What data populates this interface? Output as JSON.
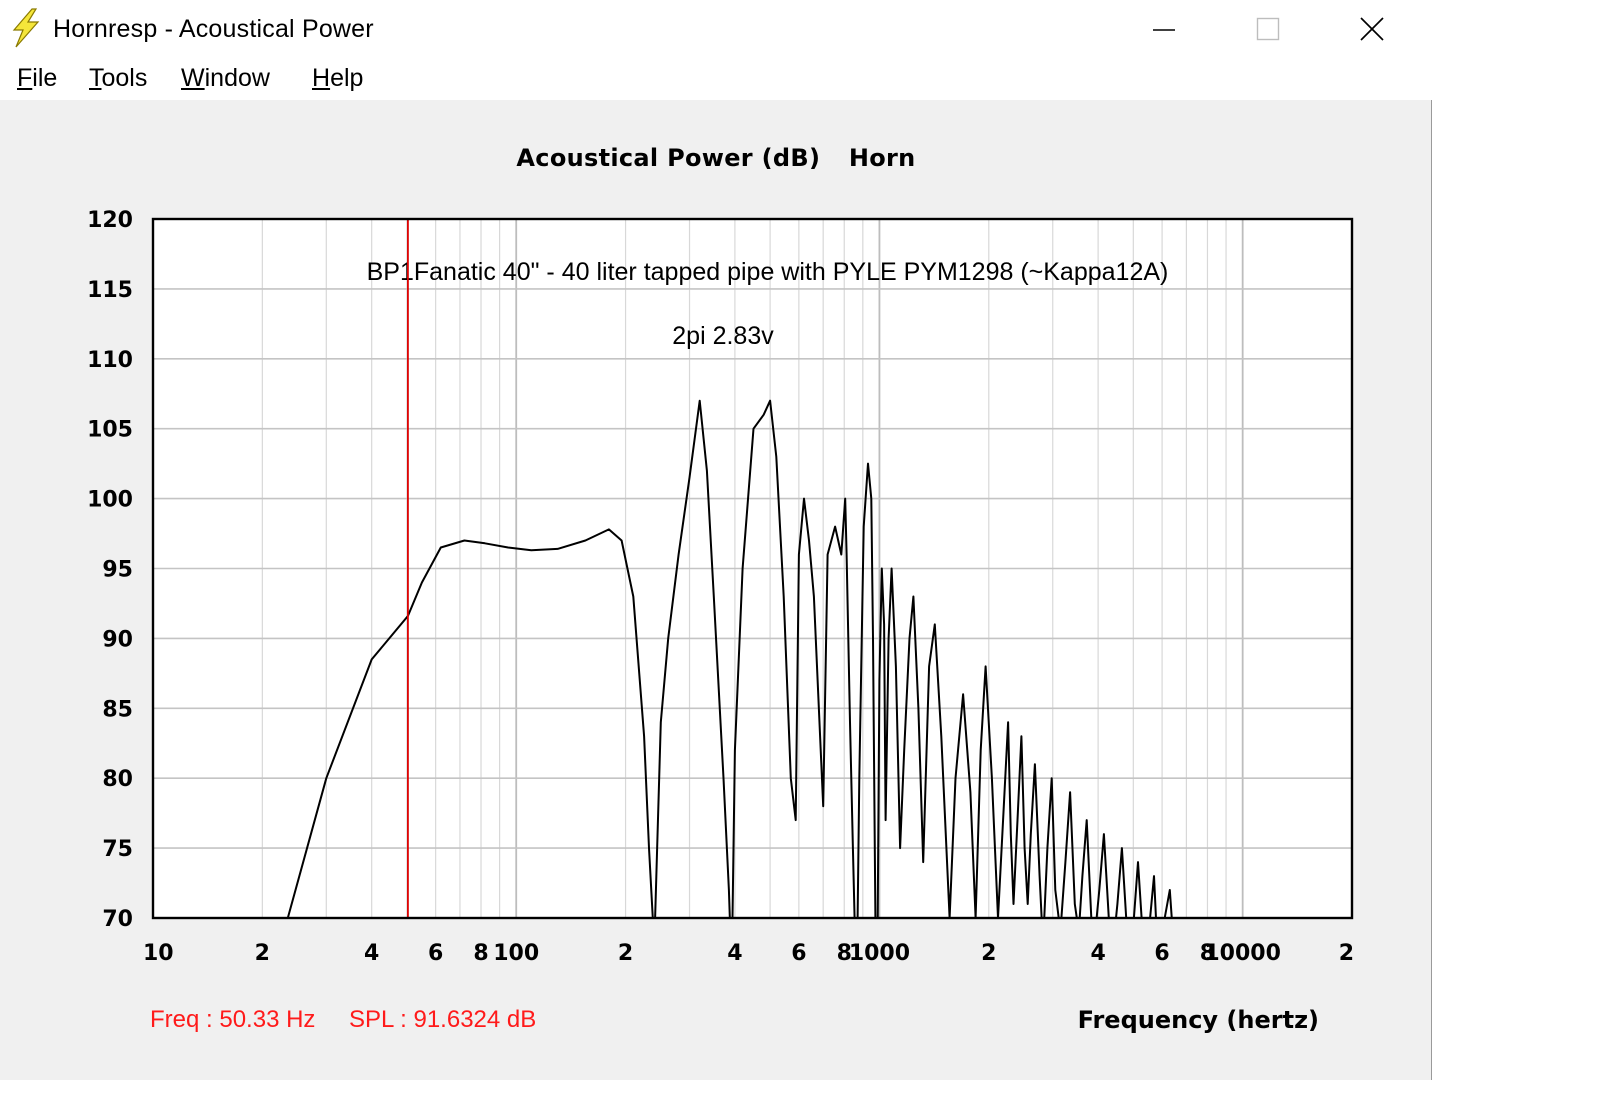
{
  "window": {
    "title": "Hornresp - Acoustical Power",
    "icon": "lightning-bolt-icon",
    "controls": {
      "minimize": "minimize-icon",
      "maximize": "maximize-icon",
      "close": "close-icon"
    }
  },
  "menu": [
    {
      "label": "File",
      "accelerator": "F"
    },
    {
      "label": "Tools",
      "accelerator": "T"
    },
    {
      "label": "Window",
      "accelerator": "W"
    },
    {
      "label": "Help",
      "accelerator": "H"
    }
  ],
  "chart_title": {
    "left": "Acoustical Power (dB)",
    "right": "Horn"
  },
  "annotations": {
    "line1": "BP1Fanatic 40\" - 40 liter tapped pipe with PYLE PYM1298 (~Kappa12A)",
    "line2": "2pi   2.83v"
  },
  "status": {
    "freq": "Freq : 50.33 Hz",
    "spl": "SPL : 91.6324 dB"
  },
  "colors": {
    "cursor": "#dd0000",
    "curve": "#000000",
    "grid": "#c8c8c8",
    "status": "#ff1a1a"
  },
  "chart_data": {
    "type": "line",
    "title": "Acoustical Power (dB)   Horn",
    "xlabel": "Frequency (hertz)",
    "ylabel": "",
    "x_scale": "log",
    "xlim": [
      10,
      20000
    ],
    "ylim": [
      70,
      120
    ],
    "grid": true,
    "y_ticks": [
      "120",
      "115",
      "110",
      "105",
      "100",
      "95",
      "90",
      "85",
      "80",
      "75",
      "70"
    ],
    "x_ticks": [
      {
        "value": 10,
        "label": "10"
      },
      {
        "value": 20,
        "label": "2"
      },
      {
        "value": 40,
        "label": "4"
      },
      {
        "value": 60,
        "label": "6"
      },
      {
        "value": 80,
        "label": "8"
      },
      {
        "value": 100,
        "label": "100"
      },
      {
        "value": 200,
        "label": "2"
      },
      {
        "value": 400,
        "label": "4"
      },
      {
        "value": 600,
        "label": "6"
      },
      {
        "value": 800,
        "label": "8"
      },
      {
        "value": 1000,
        "label": "1000"
      },
      {
        "value": 2000,
        "label": "2"
      },
      {
        "value": 4000,
        "label": "4"
      },
      {
        "value": 6000,
        "label": "6"
      },
      {
        "value": 8000,
        "label": "8"
      },
      {
        "value": 10000,
        "label": "10000"
      },
      {
        "value": 20000,
        "label": "2"
      }
    ],
    "cursor": {
      "x": 50.33,
      "y": 91.6324
    },
    "series": [
      {
        "values_x": [
          23.5,
          30,
          40,
          50.33,
          55,
          62,
          72,
          82,
          95,
          110,
          130,
          155,
          180,
          195,
          210,
          225,
          232,
          240,
          250,
          262,
          280,
          300,
          320,
          335,
          350,
          372,
          385,
          392,
          400,
          420,
          450,
          480,
          500,
          520,
          545,
          570,
          588,
          600,
          620,
          640,
          660,
          700,
          720,
          755,
          785,
          805,
          812,
          830,
          845,
          865,
          880,
          905,
          930,
          950,
          960,
          975,
          985,
          995,
          1000,
          1015,
          1030,
          1040,
          1060,
          1080,
          1110,
          1140,
          1170,
          1210,
          1240,
          1280,
          1320,
          1370,
          1420,
          1480,
          1560,
          1620,
          1700,
          1780,
          1840,
          1900,
          1960,
          2040,
          2120,
          2200,
          2260,
          2300,
          2340,
          2400,
          2460,
          2510,
          2560,
          2610,
          2680,
          2760,
          2820,
          2900,
          2980,
          3050,
          3150,
          3250,
          3350,
          3450,
          3540,
          3620,
          3720,
          3830,
          3930,
          4030,
          4150,
          4280,
          4400,
          4520,
          4650,
          4780,
          4900,
          5020,
          5150,
          5300,
          5420,
          5560,
          5700,
          5820,
          5960,
          6100,
          6300,
          6500,
          6700,
          6850
        ],
        "values_y": [
          70,
          80,
          88.5,
          91.6,
          94,
          96.5,
          97,
          96.8,
          96.5,
          96.3,
          96.4,
          97,
          97.8,
          97,
          93,
          83,
          75,
          68,
          84,
          90,
          96,
          101.5,
          107,
          102,
          93,
          80,
          72,
          66,
          82,
          95,
          105,
          106,
          107,
          103,
          93,
          80,
          77,
          96,
          100,
          97,
          93,
          78,
          96,
          98,
          96,
          100,
          96,
          84,
          75,
          64,
          80,
          98,
          102.5,
          100,
          90,
          70,
          64,
          79,
          87,
          95,
          91,
          77,
          90,
          95,
          88,
          75,
          82,
          90,
          93,
          85,
          74,
          88,
          91,
          83,
          70,
          80,
          86,
          79,
          70,
          82,
          88,
          80,
          70,
          78,
          84,
          76,
          71,
          77,
          83,
          75,
          71,
          76,
          81,
          73,
          68,
          75,
          80,
          72,
          69,
          74,
          79,
          71,
          69,
          73,
          77,
          70,
          69,
          72,
          76,
          70,
          68,
          71,
          75,
          70,
          68,
          70,
          74,
          69,
          67,
          70,
          73,
          68,
          66,
          70,
          72,
          67,
          66,
          68
        ]
      }
    ]
  }
}
